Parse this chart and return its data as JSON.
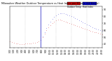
{
  "title": "Milwaukee Weather Outdoor Temperature vs Heat Index per Minute (24 Hours)",
  "title_fontsize": 2.5,
  "legend_labels": [
    "Outdoor Temp",
    "Heat Index"
  ],
  "legend_colors": [
    "#cc0000",
    "#0000cc"
  ],
  "bg_color": "#ffffff",
  "plot_bg": "#ffffff",
  "x_ticks_labels": [
    "0:00",
    "1:00",
    "2:00",
    "3:00",
    "4:00",
    "5:00",
    "6:00",
    "7:00",
    "8:00",
    "9:00",
    "10:00",
    "11:00",
    "12:00",
    "13:00",
    "14:00",
    "15:00",
    "16:00",
    "17:00",
    "18:00",
    "19:00",
    "20:00",
    "21:00",
    "22:00",
    "23:00"
  ],
  "y_ticks": [
    40,
    50,
    60,
    70,
    80,
    90
  ],
  "ylim": [
    35,
    95
  ],
  "xlim": [
    0,
    1439
  ],
  "red_data": {
    "x": [
      0,
      30,
      60,
      90,
      120,
      150,
      180,
      210,
      240,
      270,
      300,
      330,
      360,
      390,
      420,
      450,
      480,
      510,
      540,
      570,
      600,
      630,
      660,
      690,
      720,
      750,
      780,
      810,
      840,
      870,
      900,
      930,
      960,
      990,
      1020,
      1050,
      1080,
      1110,
      1140,
      1170,
      1200,
      1230,
      1260,
      1290,
      1320,
      1350,
      1380,
      1410,
      1439
    ],
    "y": [
      44,
      43,
      42,
      41,
      41,
      40,
      40,
      40,
      41,
      41,
      41,
      41,
      42,
      42,
      43,
      44,
      46,
      50,
      55,
      60,
      64,
      67,
      70,
      72,
      74,
      75,
      75,
      74,
      73,
      72,
      71,
      70,
      69,
      68,
      67,
      66,
      65,
      64,
      63,
      62,
      61,
      60,
      59,
      58,
      57,
      57,
      56,
      55,
      54
    ]
  },
  "blue_data": {
    "x": [
      480,
      510,
      540,
      570,
      600,
      630,
      660,
      690,
      720,
      750,
      780,
      810,
      840,
      870,
      900,
      930,
      960,
      990,
      1020,
      1050,
      1080,
      1110,
      1140,
      1170,
      1200,
      1230,
      1260,
      1290,
      1320,
      1350,
      1380,
      1410,
      1439
    ],
    "y": [
      46,
      51,
      57,
      63,
      68,
      72,
      76,
      79,
      82,
      84,
      85,
      85,
      85,
      84,
      83,
      82,
      80,
      79,
      77,
      76,
      74,
      73,
      71,
      70,
      68,
      67,
      66,
      64,
      63,
      62,
      61,
      60,
      59
    ]
  },
  "grid_x_positions": [
    0,
    240,
    480,
    720,
    960,
    1200
  ],
  "vline_x": 480,
  "marker_size": 0.7,
  "tick_fontsize": 2.0,
  "y_tick_fontsize": 2.2
}
